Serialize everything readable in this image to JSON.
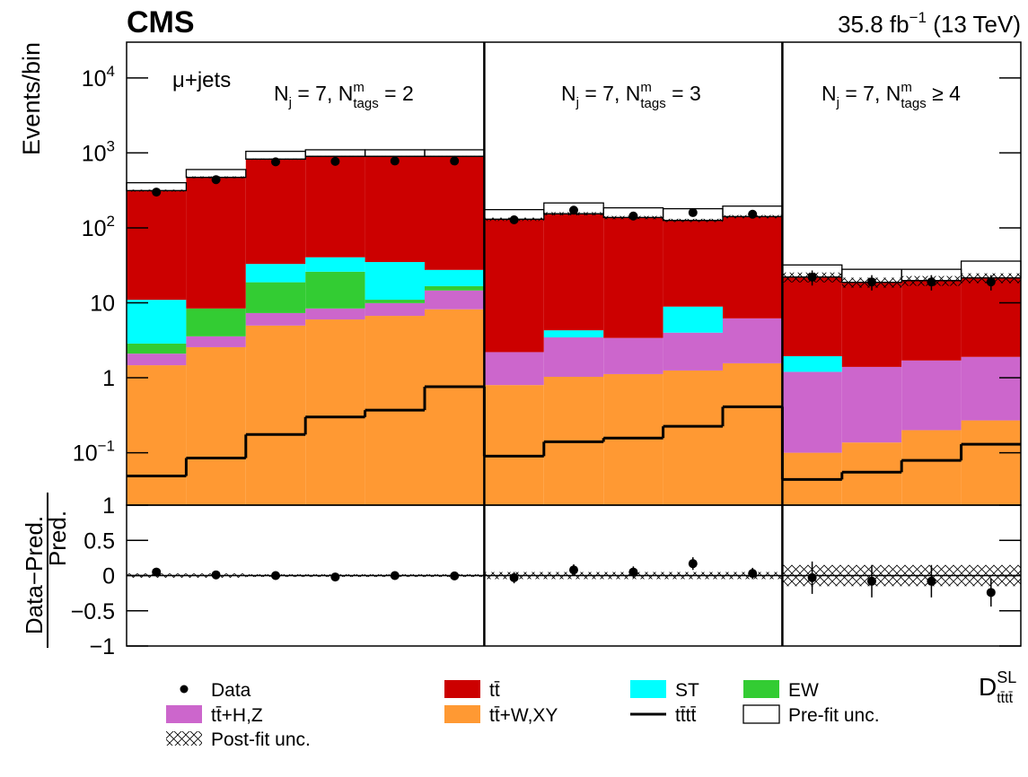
{
  "chart_data": {
    "type": "stacked-histogram",
    "experiment": "CMS",
    "lumi": {
      "text": "35.8 fb",
      "sup": "−1",
      "suffix": " (13 TeV)"
    },
    "channel": "μ+jets",
    "ylabel": "Events/bin",
    "xlabel": {
      "main": "D",
      "sup": "SL",
      "sub": "tt̄tt̄"
    },
    "log_y": true,
    "ylim": [
      0.02,
      30000
    ],
    "yticks": [
      {
        "value": 0.1,
        "label": "10",
        "exp": "−1"
      },
      1,
      10,
      {
        "value": 100,
        "label": "10",
        "exp": "2"
      },
      {
        "value": 1000,
        "label": "10",
        "exp": "3"
      },
      {
        "value": 10000,
        "label": "10",
        "exp": "4"
      }
    ],
    "regions": [
      {
        "n": "N",
        "n_sub": "j",
        "mid": " = 7, N",
        "m_sup": "m",
        "m_sub": "tags",
        "rel": " = 2"
      },
      {
        "n": "N",
        "n_sub": "j",
        "mid": " = 7, N",
        "m_sup": "m",
        "m_sub": "tags",
        "rel": " = 3"
      },
      {
        "n": "N",
        "n_sub": "j",
        "mid": " = 7, N",
        "m_sup": "m",
        "m_sub": "tags",
        "rel": " ≥ 4"
      }
    ],
    "categories": [
      null,
      null,
      null,
      null,
      null,
      null,
      null,
      null,
      null,
      null,
      null,
      null,
      null,
      null,
      null
    ],
    "series": [
      {
        "name": "tt̄+W,XY",
        "color": "#ff9933",
        "values": [
          1.47,
          2.56,
          4.97,
          6.0,
          6.7,
          8.2,
          0.8,
          1.03,
          1.12,
          1.25,
          1.56,
          0.1,
          0.137,
          0.2,
          0.27
        ]
      },
      {
        "name": "tt̄+H,Z",
        "color": "#cc66cc",
        "values": [
          0.63,
          1.01,
          2.33,
          2.4,
          3.2,
          6.4,
          1.4,
          2.43,
          2.28,
          2.75,
          4.64,
          1.1,
          1.26,
          1.5,
          1.63
        ]
      },
      {
        "name": "EW",
        "color": "#33cc33",
        "values": [
          0.76,
          4.83,
          11.5,
          17.6,
          1.1,
          2.1,
          0,
          0,
          0,
          0,
          0,
          0,
          0,
          0,
          0
        ]
      },
      {
        "name": "ST",
        "color": "#00ffff",
        "values": [
          8.1,
          0,
          14.2,
          14.5,
          24,
          10.8,
          0,
          0.84,
          0,
          4.9,
          0,
          0.74,
          0,
          0,
          0
        ]
      },
      {
        "name": "tt̄",
        "color": "#cc0000",
        "values": [
          303,
          464,
          792,
          860,
          865,
          872,
          128,
          150,
          134,
          117,
          135,
          20.1,
          17.4,
          18.1,
          19.6
        ]
      }
    ],
    "signal": {
      "name": "tt̄tt̄",
      "color": "#000000",
      "values": [
        0.049,
        0.085,
        0.175,
        0.3,
        0.37,
        0.76,
        0.09,
        0.14,
        0.157,
        0.225,
        0.41,
        0.044,
        0.055,
        0.079,
        0.13
      ]
    },
    "data": {
      "name": "Data",
      "values": [
        300,
        440,
        760,
        770,
        780,
        780,
        128,
        172,
        144,
        160,
        152,
        22,
        19,
        19,
        19
      ],
      "errors": [
        17,
        21,
        28,
        28,
        28,
        28,
        11,
        13,
        12,
        13,
        12,
        5,
        4.4,
        4.4,
        4.4
      ]
    },
    "prefit_unc": {
      "name": "Pre-fit unc.",
      "values": [
        400,
        600,
        1050,
        1100,
        1100,
        1100,
        175,
        215,
        185,
        180,
        195,
        32,
        28,
        28,
        36
      ]
    },
    "postfit_unc": {
      "name": "Post-fit unc.",
      "values": [
        0.03,
        0.03,
        0.02,
        0.02,
        0.02,
        0.02,
        0.05,
        0.05,
        0.05,
        0.05,
        0.05,
        0.15,
        0.15,
        0.15,
        0.15
      ]
    },
    "ratio": {
      "ylabel_num": "Data−Pred.",
      "ylabel_den": "Pred.",
      "ylim": [
        -1,
        1
      ],
      "yticks": [
        {
          "value": -1,
          "label": "−1"
        },
        {
          "value": -0.5,
          "label": "−0.5"
        },
        0,
        0.5,
        1
      ],
      "values": [
        0.05,
        0.01,
        0.0,
        -0.02,
        0.0,
        -0.005,
        -0.03,
        0.08,
        0.05,
        0.17,
        0.03,
        -0.03,
        -0.08,
        -0.08,
        -0.24
      ],
      "errors": [
        0.04,
        0.04,
        0.03,
        0.03,
        0.03,
        0.03,
        0.08,
        0.08,
        0.08,
        0.09,
        0.08,
        0.23,
        0.23,
        0.23,
        0.2
      ]
    }
  }
}
